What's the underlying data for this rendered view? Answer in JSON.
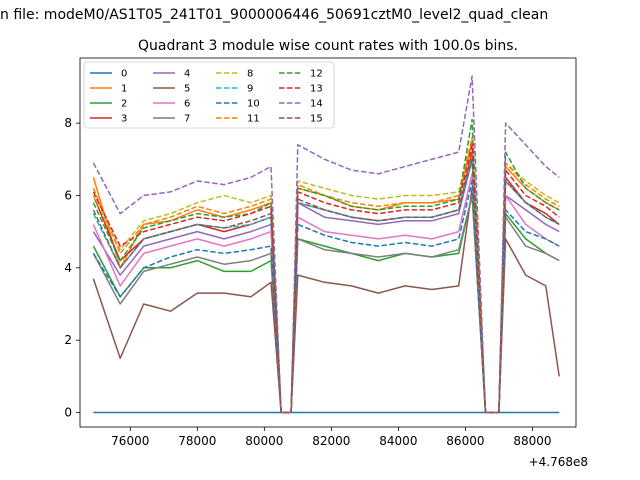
{
  "page": {
    "suptitle": "n file: modeM0/AS1T05_241T01_9000006446_50691cztM0_level2_quad_clean",
    "title": "Quadrant 3 module wise count rates with 100.0s bins."
  },
  "chart_data": {
    "type": "line",
    "title": "Quadrant 3 module wise count rates with 100.0s bins.",
    "xlabel": "",
    "ylabel": "",
    "x_offset_label": "+4.768e8",
    "xlim": [
      74500,
      89300
    ],
    "ylim": [
      -0.4,
      9.8
    ],
    "xticks": [
      76000,
      78000,
      80000,
      82000,
      84000,
      86000,
      88000
    ],
    "xtick_labels": [
      "76000",
      "78000",
      "80000",
      "82000",
      "84000",
      "86000",
      "88000"
    ],
    "yticks": [
      0,
      2,
      4,
      6,
      8
    ],
    "ytick_labels": [
      "0",
      "2",
      "4",
      "6",
      "8"
    ],
    "legend": {
      "position": "top-left",
      "columns": 4
    },
    "x": [
      74900,
      75700,
      76400,
      77200,
      78000,
      78800,
      79600,
      80200,
      80500,
      80800,
      81000,
      81800,
      82600,
      83400,
      84200,
      85000,
      85800,
      86200,
      86600,
      87000,
      87200,
      87800,
      88400,
      88800
    ],
    "series": [
      {
        "name": "0",
        "color": "#1f77b4",
        "dash": "solid",
        "values": [
          0,
          0,
          0,
          0,
          0,
          0,
          0,
          0,
          0,
          0,
          0,
          0,
          0,
          0,
          0,
          0,
          0,
          0,
          0,
          0,
          0,
          0,
          0,
          0
        ]
      },
      {
        "name": "1",
        "color": "#ff7f0e",
        "dash": "solid",
        "values": [
          6.5,
          4.0,
          5.2,
          5.3,
          5.6,
          5.4,
          5.6,
          5.8,
          0,
          0,
          6.2,
          6.0,
          5.7,
          5.6,
          5.8,
          5.8,
          5.9,
          7.5,
          0,
          0,
          6.8,
          6.2,
          5.8,
          5.6
        ]
      },
      {
        "name": "2",
        "color": "#2ca02c",
        "dash": "solid",
        "values": [
          4.6,
          3.2,
          4.0,
          4.0,
          4.2,
          3.9,
          3.9,
          4.2,
          0,
          0,
          4.8,
          4.6,
          4.4,
          4.2,
          4.4,
          4.3,
          4.4,
          6.0,
          0,
          0,
          5.5,
          4.8,
          4.4,
          4.2
        ]
      },
      {
        "name": "3",
        "color": "#d62728",
        "dash": "solid",
        "values": [
          6.0,
          4.2,
          4.8,
          5.0,
          5.2,
          5.0,
          5.2,
          5.4,
          0,
          0,
          5.8,
          5.6,
          5.4,
          5.3,
          5.4,
          5.4,
          5.6,
          7.2,
          0,
          0,
          6.5,
          5.8,
          5.5,
          5.2
        ]
      },
      {
        "name": "4",
        "color": "#9467bd",
        "dash": "solid",
        "values": [
          5.0,
          3.8,
          4.6,
          4.8,
          5.0,
          4.8,
          5.0,
          5.2,
          0,
          0,
          5.8,
          5.4,
          5.3,
          5.2,
          5.3,
          5.3,
          5.5,
          7.0,
          0,
          0,
          6.0,
          5.6,
          5.2,
          5.0
        ]
      },
      {
        "name": "5",
        "color": "#8c564b",
        "dash": "solid",
        "values": [
          3.7,
          1.5,
          3.0,
          2.8,
          3.3,
          3.3,
          3.2,
          3.6,
          0,
          0,
          3.8,
          3.6,
          3.5,
          3.3,
          3.5,
          3.4,
          3.5,
          6.2,
          0,
          0,
          4.8,
          3.8,
          3.5,
          1.0
        ]
      },
      {
        "name": "6",
        "color": "#e377c2",
        "dash": "solid",
        "values": [
          5.2,
          3.5,
          4.4,
          4.6,
          4.8,
          4.6,
          4.8,
          5.0,
          0,
          0,
          5.4,
          5.0,
          4.9,
          4.8,
          4.9,
          4.8,
          5.0,
          6.6,
          0,
          0,
          6.0,
          5.2,
          4.8,
          4.6
        ]
      },
      {
        "name": "7",
        "color": "#7f7f7f",
        "dash": "solid",
        "values": [
          4.4,
          3.0,
          3.9,
          4.1,
          4.3,
          4.1,
          4.2,
          4.4,
          0,
          0,
          4.8,
          4.5,
          4.4,
          4.3,
          4.4,
          4.3,
          4.5,
          6.0,
          0,
          0,
          5.4,
          4.6,
          4.4,
          4.2
        ]
      },
      {
        "name": "8",
        "color": "#bcbd22",
        "dash": "dashed",
        "values": [
          6.0,
          4.5,
          5.3,
          5.5,
          5.8,
          6.0,
          5.8,
          6.0,
          0,
          0,
          6.4,
          6.2,
          6.0,
          5.9,
          6.0,
          6.0,
          6.1,
          7.6,
          0,
          0,
          6.9,
          6.4,
          6.0,
          5.8
        ]
      },
      {
        "name": "9",
        "color": "#17becf",
        "dash": "dashed",
        "values": [
          5.5,
          4.0,
          4.8,
          5.0,
          5.2,
          5.1,
          5.2,
          5.4,
          0,
          0,
          5.8,
          5.6,
          5.4,
          5.3,
          5.4,
          5.4,
          5.6,
          7.1,
          0,
          0,
          6.4,
          5.8,
          5.4,
          5.2
        ]
      },
      {
        "name": "10",
        "color": "#1f77b4",
        "dash": "dashed",
        "values": [
          4.4,
          3.2,
          4.0,
          4.3,
          4.5,
          4.4,
          4.5,
          4.6,
          0,
          0,
          5.2,
          4.9,
          4.7,
          4.6,
          4.7,
          4.6,
          4.8,
          6.4,
          0,
          0,
          5.6,
          5.0,
          4.8,
          4.6
        ]
      },
      {
        "name": "11",
        "color": "#ff7f0e",
        "dash": "dashed",
        "values": [
          6.2,
          4.4,
          5.2,
          5.4,
          5.7,
          5.5,
          5.7,
          5.9,
          0,
          0,
          6.3,
          6.0,
          5.8,
          5.7,
          5.8,
          5.8,
          6.0,
          7.6,
          0,
          0,
          6.9,
          6.3,
          5.9,
          5.7
        ]
      },
      {
        "name": "12",
        "color": "#2ca02c",
        "dash": "dashed",
        "values": [
          5.8,
          4.2,
          5.1,
          5.3,
          5.5,
          5.4,
          5.5,
          5.8,
          0,
          0,
          6.2,
          6.0,
          5.7,
          5.6,
          5.7,
          5.7,
          5.9,
          8.1,
          0,
          0,
          7.2,
          6.2,
          5.8,
          5.6
        ]
      },
      {
        "name": "13",
        "color": "#d62728",
        "dash": "dashed",
        "values": [
          6.1,
          4.6,
          5.0,
          5.2,
          5.4,
          5.3,
          5.5,
          5.7,
          0,
          0,
          6.1,
          5.8,
          5.6,
          5.5,
          5.6,
          5.6,
          5.8,
          7.4,
          0,
          0,
          6.7,
          6.0,
          5.7,
          5.4
        ]
      },
      {
        "name": "14",
        "color": "#9467bd",
        "dash": "dashed",
        "values": [
          6.9,
          5.5,
          6.0,
          6.1,
          6.4,
          6.3,
          6.5,
          6.8,
          0,
          0,
          7.4,
          7.0,
          6.7,
          6.6,
          6.8,
          7.0,
          7.2,
          9.3,
          0,
          0,
          8.0,
          7.4,
          6.8,
          6.5
        ]
      },
      {
        "name": "15",
        "color": "#8c564b",
        "dash": "dashed",
        "values": [
          5.6,
          4.0,
          4.8,
          5.0,
          5.2,
          5.1,
          5.3,
          5.5,
          0,
          0,
          5.9,
          5.6,
          5.4,
          5.3,
          5.4,
          5.4,
          5.6,
          7.0,
          0,
          0,
          6.4,
          5.8,
          5.4,
          5.2
        ]
      }
    ]
  }
}
